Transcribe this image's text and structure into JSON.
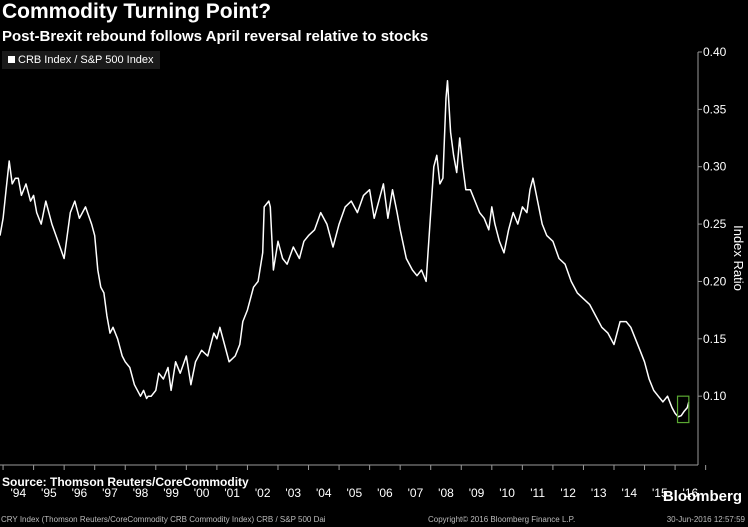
{
  "header": {
    "title": "Commodity Turning Point?",
    "subtitle": "Post-Brexit rebound follows April reversal relative to stocks"
  },
  "footer": {
    "source": "Source: Thomson Reuters/CoreCommodity",
    "brand": "Bloomberg",
    "series_note": "CRY Index (Thomson Reuters/CoreCommodity CRB Commodity Index) CRB / S&P 500 Dai",
    "copyright": "Copyright© 2016 Bloomberg Finance L.P.",
    "timestamp": "30-Jun-2016 12:57:59"
  },
  "colors": {
    "background": "#000000",
    "line": "#ffffff",
    "highlight_box": "#5aa832",
    "legend_bg": "#1a1a1a"
  },
  "chart_data": {
    "type": "line",
    "title": "Commodity Turning Point?",
    "legend": "CRB Index / S&P 500 Index",
    "legend_position": "top-left",
    "ylabel": "Index Ratio",
    "y_axis_side": "right",
    "ylim": [
      0.04,
      0.4
    ],
    "yticks": [
      0.1,
      0.15,
      0.2,
      0.25,
      0.3,
      0.35,
      0.4
    ],
    "ytick_labels": [
      "0.10",
      "0.15",
      "0.20",
      "0.25",
      "0.30",
      "0.35",
      "0.40"
    ],
    "xlim": [
      1993.9,
      2016.75
    ],
    "xtick_labels": [
      "'94",
      "'95",
      "'96",
      "'97",
      "'98",
      "'99",
      "'00",
      "'01",
      "'02",
      "'03",
      "'04",
      "'05",
      "'06",
      "'07",
      "'08",
      "'09",
      "'10",
      "'11",
      "'12",
      "'13",
      "'14",
      "'15",
      "'16"
    ],
    "grid": false,
    "highlight": {
      "label": "Post-Brexit rebound",
      "x_range": [
        2016.08,
        2016.45
      ],
      "y_range": [
        0.077,
        0.1
      ]
    },
    "series": [
      {
        "name": "CRB Index / S&P 500 Index",
        "x": [
          1993.9,
          1994.0,
          1994.1,
          1994.2,
          1994.3,
          1994.4,
          1994.5,
          1994.6,
          1994.75,
          1994.9,
          1995.0,
          1995.1,
          1995.25,
          1995.4,
          1995.6,
          1995.8,
          1996.0,
          1996.2,
          1996.35,
          1996.5,
          1996.7,
          1996.9,
          1997.0,
          1997.1,
          1997.2,
          1997.3,
          1997.4,
          1997.5,
          1997.6,
          1997.75,
          1997.9,
          1998.0,
          1998.15,
          1998.3,
          1998.5,
          1998.6,
          1998.7,
          1998.75,
          1998.85,
          1999.0,
          1999.1,
          1999.25,
          1999.4,
          1999.5,
          1999.65,
          1999.8,
          2000.0,
          2000.15,
          2000.3,
          2000.5,
          2000.7,
          2000.9,
          2001.0,
          2001.1,
          2001.25,
          2001.4,
          2001.6,
          2001.75,
          2001.85,
          2002.0,
          2002.2,
          2002.35,
          2002.5,
          2002.55,
          2002.7,
          2002.75,
          2002.85,
          2003.0,
          2003.15,
          2003.3,
          2003.5,
          2003.7,
          2003.85,
          2004.0,
          2004.2,
          2004.4,
          2004.6,
          2004.8,
          2005.0,
          2005.2,
          2005.4,
          2005.6,
          2005.8,
          2006.0,
          2006.15,
          2006.3,
          2006.45,
          2006.6,
          2006.75,
          2006.9,
          2007.0,
          2007.2,
          2007.4,
          2007.55,
          2007.7,
          2007.85,
          2008.0,
          2008.1,
          2008.2,
          2008.3,
          2008.4,
          2008.5,
          2008.55,
          2008.65,
          2008.75,
          2008.85,
          2008.95,
          2009.05,
          2009.15,
          2009.3,
          2009.45,
          2009.6,
          2009.75,
          2009.9,
          2010.0,
          2010.1,
          2010.25,
          2010.4,
          2010.55,
          2010.7,
          2010.85,
          2011.0,
          2011.15,
          2011.25,
          2011.35,
          2011.5,
          2011.65,
          2011.8,
          2012.0,
          2012.2,
          2012.4,
          2012.6,
          2012.8,
          2013.0,
          2013.2,
          2013.4,
          2013.6,
          2013.8,
          2014.0,
          2014.2,
          2014.4,
          2014.55,
          2014.7,
          2014.85,
          2015.0,
          2015.15,
          2015.3,
          2015.45,
          2015.6,
          2015.75,
          2015.9,
          2016.0,
          2016.1,
          2016.2,
          2016.3,
          2016.4,
          2016.45
        ],
        "y": [
          0.24,
          0.255,
          0.28,
          0.305,
          0.285,
          0.29,
          0.29,
          0.275,
          0.285,
          0.27,
          0.275,
          0.26,
          0.25,
          0.27,
          0.25,
          0.235,
          0.22,
          0.26,
          0.27,
          0.255,
          0.265,
          0.25,
          0.24,
          0.21,
          0.195,
          0.19,
          0.17,
          0.155,
          0.16,
          0.15,
          0.135,
          0.13,
          0.125,
          0.11,
          0.1,
          0.105,
          0.098,
          0.1,
          0.1,
          0.105,
          0.12,
          0.115,
          0.125,
          0.105,
          0.13,
          0.12,
          0.135,
          0.11,
          0.13,
          0.14,
          0.135,
          0.155,
          0.15,
          0.16,
          0.145,
          0.13,
          0.135,
          0.145,
          0.165,
          0.175,
          0.195,
          0.2,
          0.225,
          0.265,
          0.27,
          0.265,
          0.21,
          0.235,
          0.22,
          0.215,
          0.23,
          0.22,
          0.235,
          0.24,
          0.245,
          0.26,
          0.25,
          0.23,
          0.25,
          0.265,
          0.27,
          0.26,
          0.275,
          0.28,
          0.255,
          0.27,
          0.285,
          0.255,
          0.28,
          0.26,
          0.245,
          0.22,
          0.21,
          0.205,
          0.21,
          0.2,
          0.26,
          0.3,
          0.31,
          0.285,
          0.29,
          0.36,
          0.375,
          0.33,
          0.31,
          0.295,
          0.325,
          0.3,
          0.28,
          0.28,
          0.27,
          0.26,
          0.255,
          0.245,
          0.265,
          0.25,
          0.235,
          0.225,
          0.245,
          0.26,
          0.25,
          0.265,
          0.26,
          0.28,
          0.29,
          0.27,
          0.25,
          0.24,
          0.235,
          0.22,
          0.215,
          0.2,
          0.19,
          0.185,
          0.18,
          0.17,
          0.16,
          0.155,
          0.145,
          0.165,
          0.165,
          0.16,
          0.15,
          0.14,
          0.13,
          0.115,
          0.105,
          0.1,
          0.095,
          0.1,
          0.09,
          0.085,
          0.082,
          0.083,
          0.087,
          0.09,
          0.095
        ]
      }
    ]
  }
}
